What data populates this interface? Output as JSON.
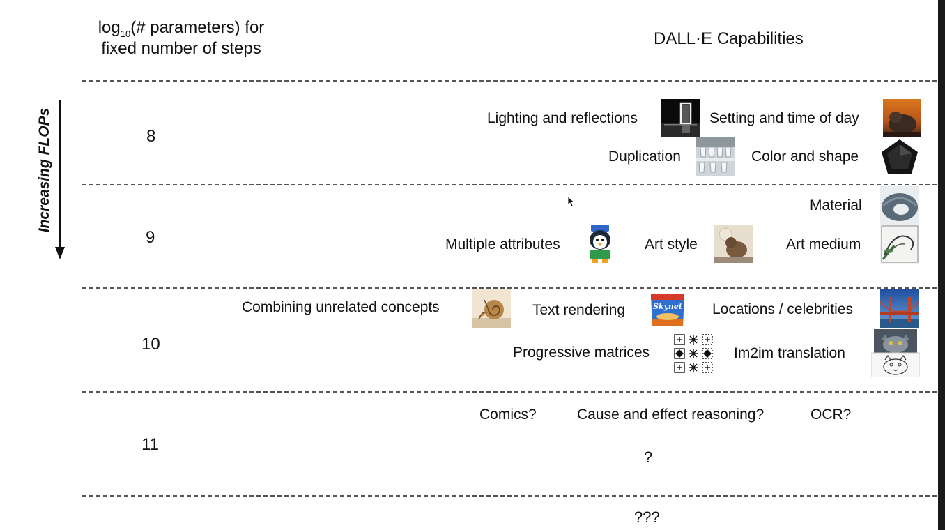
{
  "header": {
    "left_title_prefix": "log",
    "left_title_sub": "10",
    "left_title_rest": "(# parameters) for",
    "left_title_line2": "fixed number of steps",
    "right_title": "DALL·E Capabilities"
  },
  "axis": {
    "label": "Increasing FLOPs"
  },
  "rows": [
    {
      "param": "8",
      "capabilities": [
        {
          "label": "Lighting and reflections",
          "icon": "door-reflection-thumbnail"
        },
        {
          "label": "Setting and time of day",
          "icon": "capybara-sunset-thumbnail"
        },
        {
          "label": "Duplication",
          "icon": "stacked-cups-thumbnail"
        },
        {
          "label": "Color and shape",
          "icon": "black-pentagon-thumbnail"
        }
      ]
    },
    {
      "param": "9",
      "capabilities": [
        {
          "label": "Material",
          "icon": "pillow-thumbnail"
        },
        {
          "label": "Multiple attributes",
          "icon": "penguin-thumbnail"
        },
        {
          "label": "Art style",
          "icon": "capybara-painting-thumbnail"
        },
        {
          "label": "Art medium",
          "icon": "drawing-thumbnail"
        }
      ]
    },
    {
      "param": "10",
      "capabilities": [
        {
          "label": "Combining unrelated concepts",
          "icon": "snail-harp-thumbnail"
        },
        {
          "label": "Text rendering",
          "icon": "skynet-bag-thumbnail"
        },
        {
          "label": "Skynet",
          "icon": "skynet-text"
        },
        {
          "label": "Locations / celebrities",
          "icon": "golden-gate-thumbnail"
        },
        {
          "label": "Progressive matrices",
          "icon": "matrix-grid-thumbnail"
        },
        {
          "label": "Im2im translation",
          "icon": "cat-photo-sketch-thumbnail"
        }
      ]
    },
    {
      "param": "11",
      "capabilities": [
        {
          "label": "Comics?"
        },
        {
          "label": "Cause and effect reasoning?"
        },
        {
          "label": "OCR?"
        },
        {
          "label": "?"
        }
      ]
    },
    {
      "capabilities": [
        {
          "label": "???"
        }
      ]
    }
  ],
  "colors": {
    "dash": "#555555",
    "text": "#111111",
    "background": "#ffffff"
  }
}
